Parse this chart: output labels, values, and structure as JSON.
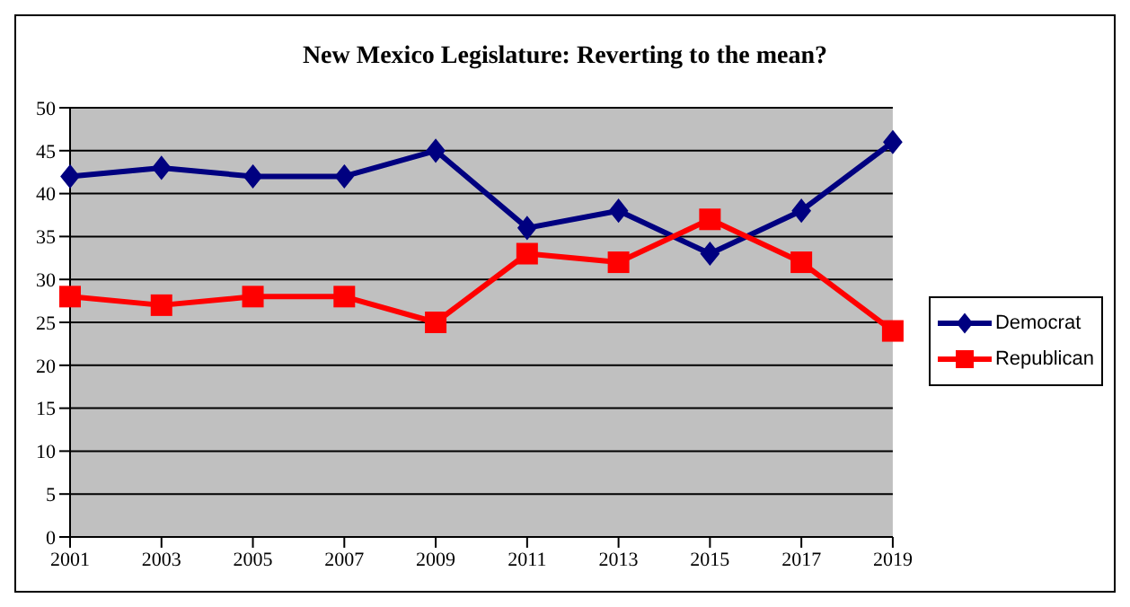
{
  "chart_data": {
    "type": "line",
    "title": "New Mexico Legislature: Reverting to the mean?",
    "categories": [
      "2001",
      "2003",
      "2005",
      "2007",
      "2009",
      "2011",
      "2013",
      "2015",
      "2017",
      "2019"
    ],
    "series": [
      {
        "name": "Democrat",
        "color": "#000080",
        "marker": "diamond",
        "values": [
          42,
          43,
          42,
          42,
          45,
          36,
          38,
          33,
          38,
          46
        ]
      },
      {
        "name": "Republican",
        "color": "#ff0000",
        "marker": "square",
        "values": [
          28,
          27,
          28,
          28,
          25,
          33,
          32,
          37,
          32,
          24
        ]
      }
    ],
    "ylim": [
      0,
      50
    ],
    "yticks": [
      0,
      5,
      10,
      15,
      20,
      25,
      30,
      35,
      40,
      45,
      50
    ],
    "grid": "y",
    "legend": "right"
  }
}
